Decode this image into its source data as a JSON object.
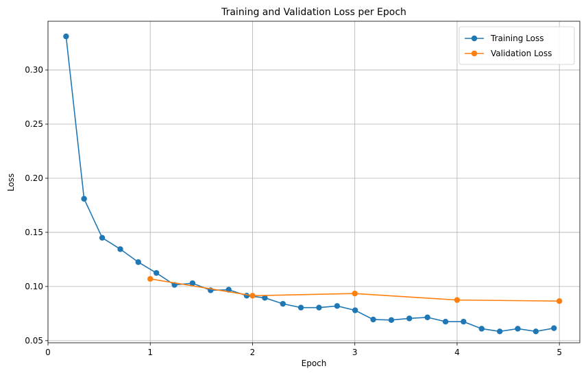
{
  "chart_data": {
    "type": "line",
    "title": "Training and Validation Loss per Epoch",
    "xlabel": "Epoch",
    "ylabel": "Loss",
    "xlim": [
      0,
      5.2
    ],
    "ylim": [
      0.048,
      0.345
    ],
    "xticks": [
      0,
      1,
      2,
      3,
      4,
      5
    ],
    "yticks": [
      0.05,
      0.1,
      0.15,
      0.2,
      0.25,
      0.3
    ],
    "grid": true,
    "legend_position": "top-right",
    "series": [
      {
        "name": "Training Loss",
        "color": "#1f77b4",
        "marker": "circle",
        "x": [
          0.177,
          0.353,
          0.53,
          0.707,
          0.883,
          1.06,
          1.237,
          1.413,
          1.59,
          1.767,
          1.943,
          2.12,
          2.297,
          2.473,
          2.65,
          2.827,
          3.003,
          3.18,
          3.357,
          3.533,
          3.71,
          3.887,
          4.063,
          4.24,
          4.417,
          4.593,
          4.77,
          4.947
        ],
        "y": [
          0.331,
          0.181,
          0.145,
          0.1345,
          0.1225,
          0.1125,
          0.1015,
          0.103,
          0.0965,
          0.097,
          0.0915,
          0.0895,
          0.084,
          0.0805,
          0.0805,
          0.082,
          0.078,
          0.0695,
          0.069,
          0.0705,
          0.0715,
          0.0675,
          0.0675,
          0.061,
          0.0585,
          0.061,
          0.0585,
          0.0615
        ]
      },
      {
        "name": "Validation Loss",
        "color": "#ff7f0e",
        "marker": "circle",
        "x": [
          1,
          2,
          3,
          4,
          5
        ],
        "y": [
          0.107,
          0.0915,
          0.0935,
          0.0875,
          0.0865
        ]
      }
    ]
  }
}
